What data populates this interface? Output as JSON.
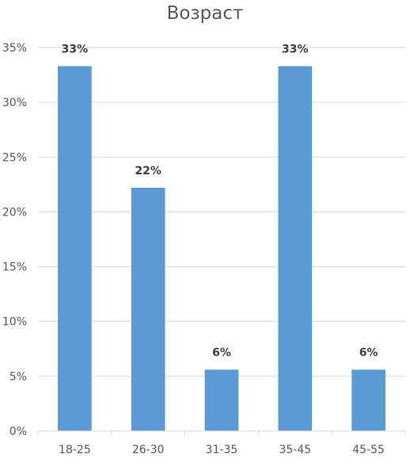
{
  "chart_data": {
    "type": "bar",
    "title": "Возраст",
    "xlabel": "",
    "ylabel": "",
    "categories": [
      "18-25",
      "26-30",
      "31-35",
      "35-45",
      "45-55"
    ],
    "values": [
      33.3,
      22.2,
      5.6,
      33.3,
      5.6
    ],
    "data_labels": [
      "33%",
      "22%",
      "6%",
      "33%",
      "6%"
    ],
    "y_ticks": [
      0,
      5,
      10,
      15,
      20,
      25,
      30,
      35
    ],
    "y_tick_labels": [
      "0%",
      "5%",
      "10%",
      "15%",
      "20%",
      "25%",
      "30%",
      "35%"
    ],
    "ylim": [
      0,
      35
    ],
    "grid": true,
    "legend": "none",
    "colors": {
      "bar": "#5B9BD5",
      "grid": "#D9D9D9",
      "axis_text": "#595959",
      "data_label": "#404040"
    }
  }
}
